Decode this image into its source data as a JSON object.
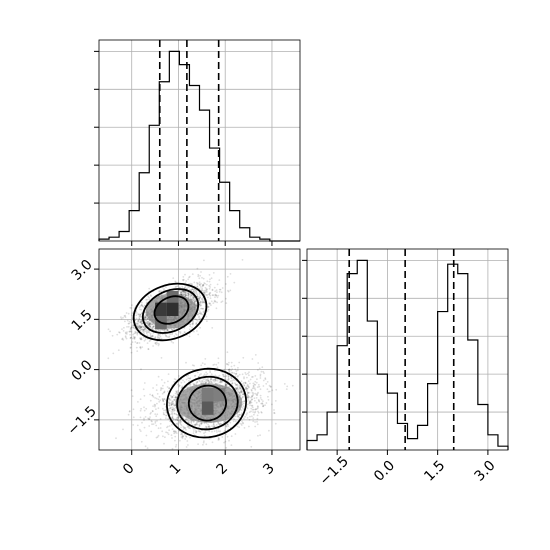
{
  "chart_data": [
    {
      "panel": "top-left",
      "type": "histogram",
      "step": true,
      "grid": true,
      "show_x_ticklabels": false,
      "show_y_ticklabels": false,
      "xlim": [
        -0.7,
        3.6
      ],
      "ylim": [
        0,
        1.06
      ],
      "bin_edges": [
        -0.7,
        -0.485,
        -0.27,
        -0.055,
        0.16,
        0.375,
        0.59,
        0.805,
        1.02,
        1.235,
        1.45,
        1.665,
        1.88,
        2.095,
        2.31,
        2.525,
        2.74,
        2.955,
        3.17,
        3.385,
        3.6
      ],
      "counts_rel": [
        0.01,
        0.02,
        0.05,
        0.16,
        0.36,
        0.61,
        0.84,
        1.0,
        0.93,
        0.82,
        0.69,
        0.49,
        0.31,
        0.16,
        0.07,
        0.02,
        0.01,
        0.0,
        0.0,
        0.0
      ],
      "quantiles": [
        0.6,
        1.18,
        1.86
      ],
      "x_ticks": [
        0,
        1,
        2,
        3
      ]
    },
    {
      "panel": "bottom-left",
      "type": "heatmap",
      "grid": true,
      "xlim": [
        -0.7,
        3.6
      ],
      "ylim": [
        -2.4,
        3.6
      ],
      "x_ticks": [
        0,
        1,
        2,
        3
      ],
      "x_ticklabels": [
        "0",
        "1",
        "2",
        "3"
      ],
      "y_ticks": [
        -1.5,
        0,
        1.5,
        3
      ],
      "y_ticklabels": [
        "−1.5",
        "0.0",
        "1.5",
        "3.0"
      ],
      "clusters": [
        {
          "center": [
            0.85,
            1.75
          ],
          "sigma": [
            0.42,
            0.4
          ],
          "rho": 0.55,
          "points": 2400
        },
        {
          "center": [
            1.65,
            -1.0
          ],
          "sigma": [
            0.55,
            0.45
          ],
          "rho": 0.25,
          "points": 2400
        }
      ],
      "density_cells": [
        {
          "x": [
            0.5,
            0.75
          ],
          "y": [
            1.2,
            1.6
          ],
          "shade": "#6a6a6a"
        },
        {
          "x": [
            0.75,
            1.0
          ],
          "y": [
            1.6,
            2.0
          ],
          "shade": "#303030"
        },
        {
          "x": [
            0.5,
            0.75
          ],
          "y": [
            1.6,
            2.0
          ],
          "shade": "#3a3a3a"
        },
        {
          "x": [
            0.75,
            1.0
          ],
          "y": [
            2.0,
            2.35
          ],
          "shade": "#6c6c6c"
        },
        {
          "x": [
            1.5,
            1.75
          ],
          "y": [
            -1.35,
            -0.95
          ],
          "shade": "#5a5a5a"
        },
        {
          "x": [
            1.5,
            1.75
          ],
          "y": [
            -0.95,
            -0.55
          ],
          "shade": "#7a7a7a"
        },
        {
          "x": [
            1.75,
            2.0
          ],
          "y": [
            -0.95,
            -0.55
          ],
          "shade": "#7f7f7f"
        }
      ],
      "contour_levels": [
        [
          {
            "center": [
              0.85,
              1.78
            ],
            "rx": 0.38,
            "ry": 0.38,
            "rotate": -25
          },
          {
            "center": [
              0.83,
              1.75
            ],
            "rx": 0.62,
            "ry": 0.6,
            "rotate": -25
          },
          {
            "center": [
              0.82,
              1.72
            ],
            "rx": 0.8,
            "ry": 0.8,
            "rotate": -20
          }
        ],
        [
          {
            "center": [
              1.62,
              -1.0
            ],
            "rx": 0.4,
            "ry": 0.52,
            "rotate": -10
          },
          {
            "center": [
              1.62,
              -1.0
            ],
            "rx": 0.65,
            "ry": 0.78,
            "rotate": -10
          },
          {
            "center": [
              1.6,
              -1.0
            ],
            "rx": 0.85,
            "ry": 1.02,
            "rotate": -10
          }
        ]
      ]
    },
    {
      "panel": "bottom-right",
      "type": "histogram",
      "step": true,
      "grid": true,
      "show_y_ticklabels": false,
      "xlim": [
        -2.4,
        3.6
      ],
      "ylim": [
        0,
        1.06
      ],
      "bin_edges": [
        -2.4,
        -2.1,
        -1.8,
        -1.5,
        -1.2,
        -0.9,
        -0.6,
        -0.3,
        0.0,
        0.3,
        0.6,
        0.9,
        1.2,
        1.5,
        1.8,
        2.1,
        2.4,
        2.7,
        3.0,
        3.3,
        3.6
      ],
      "counts_rel": [
        0.05,
        0.08,
        0.2,
        0.55,
        0.93,
        1.0,
        0.68,
        0.4,
        0.3,
        0.14,
        0.06,
        0.13,
        0.35,
        0.73,
        0.98,
        0.93,
        0.58,
        0.24,
        0.08,
        0.02
      ],
      "quantiles": [
        -1.14,
        0.53,
        1.98
      ],
      "x_ticks": [
        -1.5,
        0,
        1.5,
        3
      ],
      "x_ticklabels": [
        "−1.5",
        "0.0",
        "1.5",
        "3.0"
      ]
    }
  ]
}
